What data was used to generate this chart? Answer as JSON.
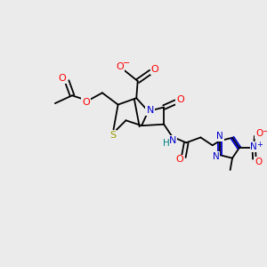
{
  "background_color": "#ebebeb",
  "bond_color": "#000000",
  "atom_colors": {
    "O": "#ff0000",
    "N": "#0000cc",
    "S": "#999900",
    "C": "#000000",
    "H": "#008080"
  },
  "figsize": [
    3.0,
    3.0
  ],
  "dpi": 100
}
